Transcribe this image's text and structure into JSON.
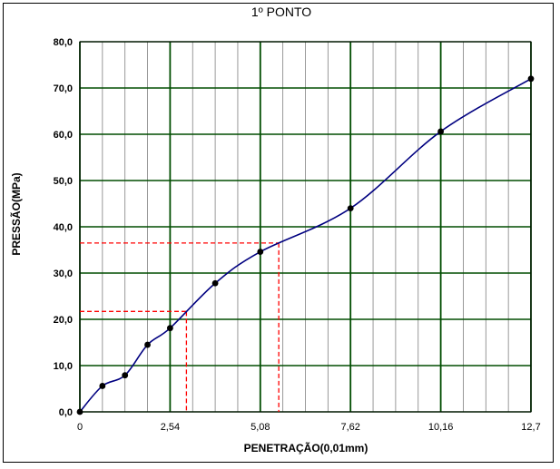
{
  "chart_data": {
    "type": "line",
    "title": "1º PONTO",
    "xlabel": "PENETRAÇÃO(0,01mm)",
    "ylabel": "PRESSÃO(MPa)",
    "xlim": [
      0,
      12.7
    ],
    "ylim": [
      0,
      80
    ],
    "x_ticks": [
      0,
      2.54,
      5.08,
      7.62,
      10.16,
      12.7
    ],
    "x_tick_labels": [
      "0",
      "2,54",
      "5,08",
      "7,62",
      "10,16",
      "12,7"
    ],
    "y_ticks": [
      0,
      10,
      20,
      30,
      40,
      50,
      60,
      70,
      80
    ],
    "y_tick_labels": [
      "0,0",
      "10,0",
      "20,0",
      "30,0",
      "40,0",
      "50,0",
      "60,0",
      "70,0",
      "80,0"
    ],
    "grid": true,
    "minor_x_step": 0.635,
    "series": [
      {
        "color": "#000080",
        "x": [
          0,
          0.635,
          1.27,
          1.905,
          2.54,
          3.81,
          5.08,
          7.62,
          10.16,
          12.7
        ],
        "y": [
          0,
          5.6,
          7.9,
          14.5,
          18.1,
          27.8,
          34.6,
          44.0,
          60.6,
          72.0
        ]
      }
    ],
    "reference_lines": [
      {
        "x": 3.0,
        "y": 21.7,
        "color": "#ff0000"
      },
      {
        "x": 5.6,
        "y": 36.5,
        "color": "#ff0000"
      }
    ]
  }
}
